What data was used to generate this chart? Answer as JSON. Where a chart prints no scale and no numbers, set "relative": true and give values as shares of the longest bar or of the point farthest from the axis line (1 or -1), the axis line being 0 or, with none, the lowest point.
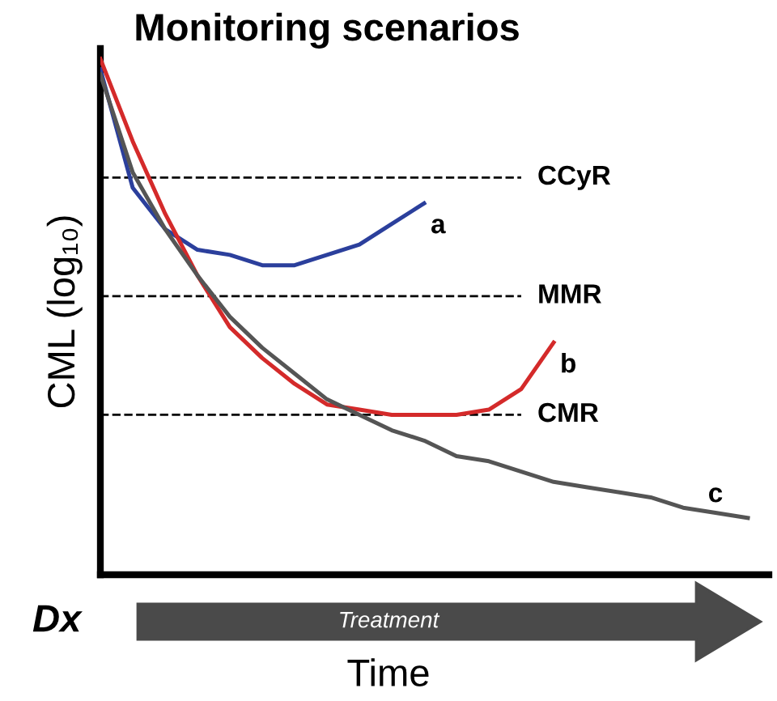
{
  "chart_data": {
    "type": "line",
    "title": "Monitoring scenarios",
    "xlabel": "Time",
    "ylabel": "CML (log₁₀)",
    "relative": true,
    "legend": false,
    "marker": "none",
    "line_style": "solid",
    "categories": [
      null,
      null,
      null,
      null,
      null,
      null,
      null,
      null,
      null,
      null,
      null,
      null,
      null,
      null,
      null,
      null,
      null,
      null,
      null,
      null,
      null
    ],
    "series": [
      {
        "name": "a",
        "color": "#2b3f9c",
        "values": [
          0.98,
          0.75,
          0.67,
          0.63,
          0.62,
          0.6,
          0.6,
          0.62,
          0.64,
          0.68,
          0.72,
          null,
          null,
          null,
          null,
          null,
          null,
          null,
          null,
          null,
          null
        ]
      },
      {
        "name": "b",
        "color": "#d42a2a",
        "values": [
          1.0,
          0.84,
          0.7,
          0.58,
          0.48,
          0.42,
          0.37,
          0.33,
          0.32,
          0.31,
          0.31,
          0.31,
          0.32,
          0.36,
          0.45,
          null,
          null,
          null,
          null,
          null,
          null
        ]
      },
      {
        "name": "c",
        "color": "#555555",
        "values": [
          0.97,
          0.78,
          0.67,
          0.58,
          0.5,
          0.44,
          0.39,
          0.34,
          0.31,
          0.28,
          0.26,
          0.23,
          0.22,
          0.2,
          0.18,
          0.17,
          0.16,
          0.15,
          0.13,
          0.12,
          0.11
        ]
      }
    ],
    "ref_lines": [
      {
        "axis": "y",
        "value": 0.77,
        "label": "CCyR",
        "line_style": "dashed",
        "color": "#000000"
      },
      {
        "axis": "y",
        "value": 0.54,
        "label": "MMR",
        "line_style": "dashed",
        "color": "#000000"
      },
      {
        "axis": "y",
        "value": 0.31,
        "label": "CMR",
        "line_style": "dashed",
        "color": "#000000"
      }
    ],
    "annotations": [
      "Dx",
      "Treatment"
    ]
  }
}
